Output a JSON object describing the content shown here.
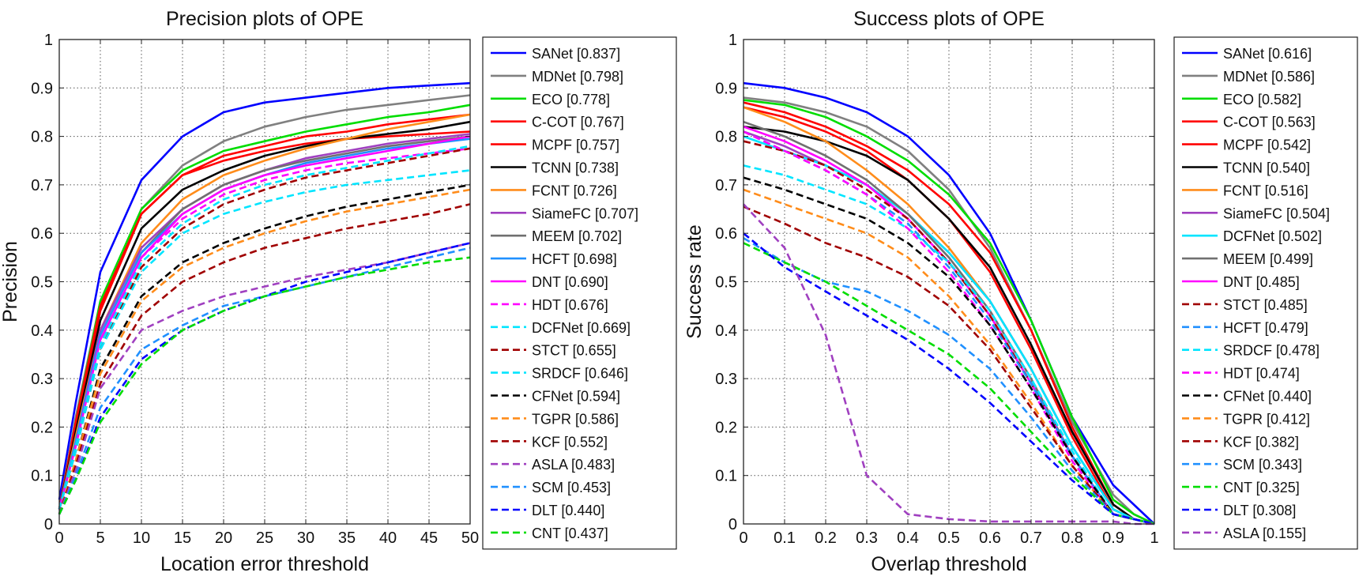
{
  "chart_data": [
    {
      "type": "line",
      "title": "Precision plots of OPE",
      "xlabel": "Location error threshold",
      "ylabel": "Precision",
      "xlim": [
        0,
        50
      ],
      "ylim": [
        0,
        1
      ],
      "xticks": [
        "0",
        "5",
        "10",
        "15",
        "20",
        "25",
        "30",
        "35",
        "40",
        "45",
        "50"
      ],
      "yticks": [
        "0",
        "0.1",
        "0.2",
        "0.3",
        "0.4",
        "0.5",
        "0.6",
        "0.7",
        "0.8",
        "0.9",
        "1"
      ],
      "grid": true,
      "legend_position": "outside-right",
      "x": [
        0,
        2,
        5,
        10,
        15,
        20,
        25,
        30,
        35,
        40,
        45,
        50
      ],
      "series": [
        {
          "name": "SANet [0.837]",
          "color": "#0000ff",
          "dash": "solid",
          "values": [
            0.05,
            0.25,
            0.52,
            0.71,
            0.8,
            0.85,
            0.87,
            0.88,
            0.89,
            0.9,
            0.905,
            0.91
          ]
        },
        {
          "name": "MDNet [0.798]",
          "color": "#808080",
          "dash": "solid",
          "values": [
            0.03,
            0.22,
            0.46,
            0.65,
            0.74,
            0.79,
            0.82,
            0.84,
            0.855,
            0.865,
            0.875,
            0.885
          ]
        },
        {
          "name": "ECO [0.778]",
          "color": "#00dd00",
          "dash": "solid",
          "values": [
            0.03,
            0.21,
            0.46,
            0.65,
            0.73,
            0.77,
            0.79,
            0.81,
            0.825,
            0.84,
            0.85,
            0.865
          ]
        },
        {
          "name": "C-COT [0.767]",
          "color": "#ff0000",
          "dash": "solid",
          "values": [
            0.03,
            0.21,
            0.45,
            0.64,
            0.72,
            0.76,
            0.78,
            0.8,
            0.81,
            0.825,
            0.835,
            0.845
          ]
        },
        {
          "name": "MCPF [0.757]",
          "color": "#ff0000",
          "dash": "solid",
          "values": [
            0.03,
            0.2,
            0.44,
            0.64,
            0.72,
            0.75,
            0.77,
            0.785,
            0.795,
            0.8,
            0.805,
            0.81
          ]
        },
        {
          "name": "TCNN [0.738]",
          "color": "#000000",
          "dash": "solid",
          "values": [
            0.03,
            0.19,
            0.42,
            0.61,
            0.69,
            0.73,
            0.76,
            0.78,
            0.795,
            0.805,
            0.815,
            0.83
          ]
        },
        {
          "name": "FCNT [0.726]",
          "color": "#ff8c1a",
          "dash": "solid",
          "values": [
            0.03,
            0.18,
            0.4,
            0.58,
            0.67,
            0.72,
            0.75,
            0.775,
            0.795,
            0.815,
            0.83,
            0.845
          ]
        },
        {
          "name": "SiameFC [0.707]",
          "color": "#a040c0",
          "dash": "solid",
          "values": [
            0.03,
            0.17,
            0.4,
            0.57,
            0.65,
            0.7,
            0.73,
            0.755,
            0.77,
            0.785,
            0.795,
            0.805
          ]
        },
        {
          "name": "MEEM [0.702]",
          "color": "#707070",
          "dash": "solid",
          "values": [
            0.03,
            0.17,
            0.39,
            0.56,
            0.65,
            0.7,
            0.73,
            0.75,
            0.765,
            0.78,
            0.79,
            0.8
          ]
        },
        {
          "name": "HCFT [0.698]",
          "color": "#2090ff",
          "dash": "solid",
          "values": [
            0.03,
            0.17,
            0.39,
            0.56,
            0.64,
            0.69,
            0.72,
            0.745,
            0.76,
            0.775,
            0.785,
            0.795
          ]
        },
        {
          "name": "DNT [0.690]",
          "color": "#ff00ff",
          "dash": "solid",
          "values": [
            0.03,
            0.16,
            0.38,
            0.55,
            0.64,
            0.69,
            0.72,
            0.74,
            0.755,
            0.77,
            0.785,
            0.8
          ]
        },
        {
          "name": "HDT [0.676]",
          "color": "#ff00ff",
          "dash": "dashed",
          "values": [
            0.03,
            0.16,
            0.37,
            0.55,
            0.63,
            0.68,
            0.71,
            0.73,
            0.745,
            0.755,
            0.765,
            0.775
          ]
        },
        {
          "name": "DCFNet [0.669]",
          "color": "#00e5ff",
          "dash": "dashed",
          "values": [
            0.03,
            0.16,
            0.37,
            0.54,
            0.62,
            0.67,
            0.7,
            0.72,
            0.735,
            0.75,
            0.765,
            0.78
          ]
        },
        {
          "name": "STCT [0.655]",
          "color": "#a00000",
          "dash": "dashed",
          "values": [
            0.03,
            0.15,
            0.36,
            0.53,
            0.61,
            0.66,
            0.69,
            0.715,
            0.73,
            0.745,
            0.76,
            0.775
          ]
        },
        {
          "name": "SRDCF [0.646]",
          "color": "#00e5ff",
          "dash": "dashed",
          "values": [
            0.03,
            0.15,
            0.36,
            0.52,
            0.6,
            0.64,
            0.665,
            0.685,
            0.7,
            0.71,
            0.72,
            0.73
          ]
        },
        {
          "name": "CFNet [0.594]",
          "color": "#000000",
          "dash": "dashed",
          "values": [
            0.02,
            0.13,
            0.32,
            0.47,
            0.54,
            0.58,
            0.61,
            0.635,
            0.655,
            0.67,
            0.685,
            0.7
          ]
        },
        {
          "name": "TGPR [0.586]",
          "color": "#ff8c1a",
          "dash": "dashed",
          "values": [
            0.02,
            0.13,
            0.31,
            0.46,
            0.53,
            0.57,
            0.6,
            0.625,
            0.645,
            0.66,
            0.675,
            0.69
          ]
        },
        {
          "name": "KCF [0.552]",
          "color": "#a00000",
          "dash": "dashed",
          "values": [
            0.02,
            0.12,
            0.29,
            0.43,
            0.5,
            0.54,
            0.57,
            0.59,
            0.61,
            0.625,
            0.64,
            0.66
          ]
        },
        {
          "name": "ASLA [0.483]",
          "color": "#a040c0",
          "dash": "dashed",
          "values": [
            0.02,
            0.11,
            0.28,
            0.4,
            0.44,
            0.47,
            0.49,
            0.51,
            0.525,
            0.54,
            0.56,
            0.58
          ]
        },
        {
          "name": "SCM [0.453]",
          "color": "#2090ff",
          "dash": "dashed",
          "values": [
            0.02,
            0.1,
            0.24,
            0.36,
            0.41,
            0.45,
            0.47,
            0.49,
            0.51,
            0.53,
            0.55,
            0.57
          ]
        },
        {
          "name": "DLT [0.440]",
          "color": "#0000ff",
          "dash": "dashed",
          "values": [
            0.02,
            0.09,
            0.22,
            0.34,
            0.4,
            0.44,
            0.47,
            0.5,
            0.52,
            0.54,
            0.56,
            0.58
          ]
        },
        {
          "name": "CNT [0.437]",
          "color": "#00dd00",
          "dash": "dashed",
          "values": [
            0.02,
            0.09,
            0.21,
            0.33,
            0.4,
            0.44,
            0.47,
            0.49,
            0.51,
            0.525,
            0.54,
            0.55
          ]
        }
      ]
    },
    {
      "type": "line",
      "title": "Success plots of OPE",
      "xlabel": "Overlap threshold",
      "ylabel": "Success rate",
      "xlim": [
        0,
        1
      ],
      "ylim": [
        0,
        1
      ],
      "xticks": [
        "0",
        "0.1",
        "0.2",
        "0.3",
        "0.4",
        "0.5",
        "0.6",
        "0.7",
        "0.8",
        "0.9",
        "1"
      ],
      "yticks": [
        "0",
        "0.1",
        "0.2",
        "0.3",
        "0.4",
        "0.5",
        "0.6",
        "0.7",
        "0.8",
        "0.9",
        "1"
      ],
      "grid": true,
      "legend_position": "outside-right",
      "x": [
        0,
        0.1,
        0.2,
        0.3,
        0.4,
        0.5,
        0.6,
        0.7,
        0.8,
        0.9,
        0.95,
        1
      ],
      "series": [
        {
          "name": "SANet [0.616]",
          "color": "#0000ff",
          "dash": "solid",
          "values": [
            0.91,
            0.9,
            0.88,
            0.85,
            0.8,
            0.72,
            0.6,
            0.42,
            0.22,
            0.08,
            0.04,
            0.0
          ]
        },
        {
          "name": "MDNet [0.586]",
          "color": "#808080",
          "dash": "solid",
          "values": [
            0.88,
            0.87,
            0.85,
            0.82,
            0.77,
            0.69,
            0.57,
            0.4,
            0.21,
            0.06,
            0.02,
            0.0
          ]
        },
        {
          "name": "ECO [0.582]",
          "color": "#00dd00",
          "dash": "solid",
          "values": [
            0.875,
            0.865,
            0.84,
            0.8,
            0.75,
            0.68,
            0.58,
            0.42,
            0.22,
            0.05,
            0.02,
            0.0
          ]
        },
        {
          "name": "C-COT [0.563]",
          "color": "#ff0000",
          "dash": "solid",
          "values": [
            0.87,
            0.85,
            0.82,
            0.78,
            0.73,
            0.66,
            0.56,
            0.4,
            0.2,
            0.04,
            0.01,
            0.0
          ]
        },
        {
          "name": "MCPF [0.542]",
          "color": "#ff0000",
          "dash": "solid",
          "values": [
            0.86,
            0.84,
            0.81,
            0.77,
            0.71,
            0.63,
            0.52,
            0.36,
            0.18,
            0.03,
            0.01,
            0.0
          ]
        },
        {
          "name": "TCNN [0.540]",
          "color": "#000000",
          "dash": "solid",
          "values": [
            0.82,
            0.81,
            0.79,
            0.76,
            0.71,
            0.63,
            0.53,
            0.37,
            0.19,
            0.04,
            0.01,
            0.0
          ]
        },
        {
          "name": "FCNT [0.516]",
          "color": "#ff8c1a",
          "dash": "solid",
          "values": [
            0.86,
            0.83,
            0.79,
            0.73,
            0.66,
            0.57,
            0.46,
            0.32,
            0.16,
            0.03,
            0.01,
            0.0
          ]
        },
        {
          "name": "SiameFC [0.504]",
          "color": "#a040c0",
          "dash": "solid",
          "values": [
            0.81,
            0.78,
            0.74,
            0.7,
            0.64,
            0.56,
            0.46,
            0.32,
            0.16,
            0.03,
            0.01,
            0.0
          ]
        },
        {
          "name": "DCFNet [0.502]",
          "color": "#00e5ff",
          "dash": "solid",
          "values": [
            0.8,
            0.77,
            0.74,
            0.7,
            0.64,
            0.56,
            0.46,
            0.32,
            0.16,
            0.03,
            0.01,
            0.0
          ]
        },
        {
          "name": "MEEM [0.499]",
          "color": "#707070",
          "dash": "solid",
          "values": [
            0.83,
            0.8,
            0.76,
            0.71,
            0.64,
            0.55,
            0.44,
            0.3,
            0.14,
            0.02,
            0.01,
            0.0
          ]
        },
        {
          "name": "DNT [0.485]",
          "color": "#ff00ff",
          "dash": "solid",
          "values": [
            0.82,
            0.79,
            0.75,
            0.7,
            0.63,
            0.54,
            0.43,
            0.29,
            0.14,
            0.02,
            0.01,
            0.0
          ]
        },
        {
          "name": "STCT [0.485]",
          "color": "#a00000",
          "dash": "dashed",
          "values": [
            0.79,
            0.77,
            0.74,
            0.69,
            0.63,
            0.54,
            0.43,
            0.29,
            0.14,
            0.02,
            0.01,
            0.0
          ]
        },
        {
          "name": "HCFT [0.479]",
          "color": "#2090ff",
          "dash": "dashed",
          "values": [
            0.81,
            0.77,
            0.73,
            0.68,
            0.62,
            0.53,
            0.42,
            0.29,
            0.14,
            0.02,
            0.01,
            0.0
          ]
        },
        {
          "name": "SRDCF [0.478]",
          "color": "#00e5ff",
          "dash": "dashed",
          "values": [
            0.74,
            0.72,
            0.69,
            0.66,
            0.61,
            0.54,
            0.44,
            0.3,
            0.15,
            0.02,
            0.01,
            0.0
          ]
        },
        {
          "name": "HDT [0.474]",
          "color": "#ff00ff",
          "dash": "dashed",
          "values": [
            0.81,
            0.77,
            0.73,
            0.68,
            0.61,
            0.52,
            0.41,
            0.28,
            0.13,
            0.02,
            0.01,
            0.0
          ]
        },
        {
          "name": "CFNet [0.440]",
          "color": "#000000",
          "dash": "dashed",
          "values": [
            0.715,
            0.69,
            0.66,
            0.63,
            0.58,
            0.51,
            0.41,
            0.28,
            0.14,
            0.02,
            0.01,
            0.0
          ]
        },
        {
          "name": "TGPR [0.412]",
          "color": "#ff8c1a",
          "dash": "dashed",
          "values": [
            0.69,
            0.66,
            0.63,
            0.6,
            0.55,
            0.47,
            0.37,
            0.25,
            0.12,
            0.02,
            0.01,
            0.0
          ]
        },
        {
          "name": "KCF [0.382]",
          "color": "#a00000",
          "dash": "dashed",
          "values": [
            0.655,
            0.62,
            0.58,
            0.55,
            0.51,
            0.45,
            0.36,
            0.24,
            0.12,
            0.02,
            0.01,
            0.0
          ]
        },
        {
          "name": "SCM [0.343]",
          "color": "#2090ff",
          "dash": "dashed",
          "values": [
            0.59,
            0.54,
            0.5,
            0.48,
            0.44,
            0.39,
            0.32,
            0.22,
            0.11,
            0.02,
            0.01,
            0.0
          ]
        },
        {
          "name": "CNT [0.325]",
          "color": "#00dd00",
          "dash": "dashed",
          "values": [
            0.58,
            0.54,
            0.5,
            0.45,
            0.4,
            0.35,
            0.28,
            0.19,
            0.1,
            0.02,
            0.01,
            0.0
          ]
        },
        {
          "name": "DLT [0.308]",
          "color": "#0000ff",
          "dash": "dashed",
          "values": [
            0.6,
            0.53,
            0.48,
            0.43,
            0.38,
            0.32,
            0.25,
            0.17,
            0.09,
            0.02,
            0.01,
            0.0
          ]
        },
        {
          "name": "ASLA [0.155]",
          "color": "#a040c0",
          "dash": "dashed",
          "values": [
            0.66,
            0.57,
            0.39,
            0.1,
            0.02,
            0.01,
            0.005,
            0.005,
            0.005,
            0.005,
            0.0,
            0.0
          ]
        }
      ]
    }
  ]
}
